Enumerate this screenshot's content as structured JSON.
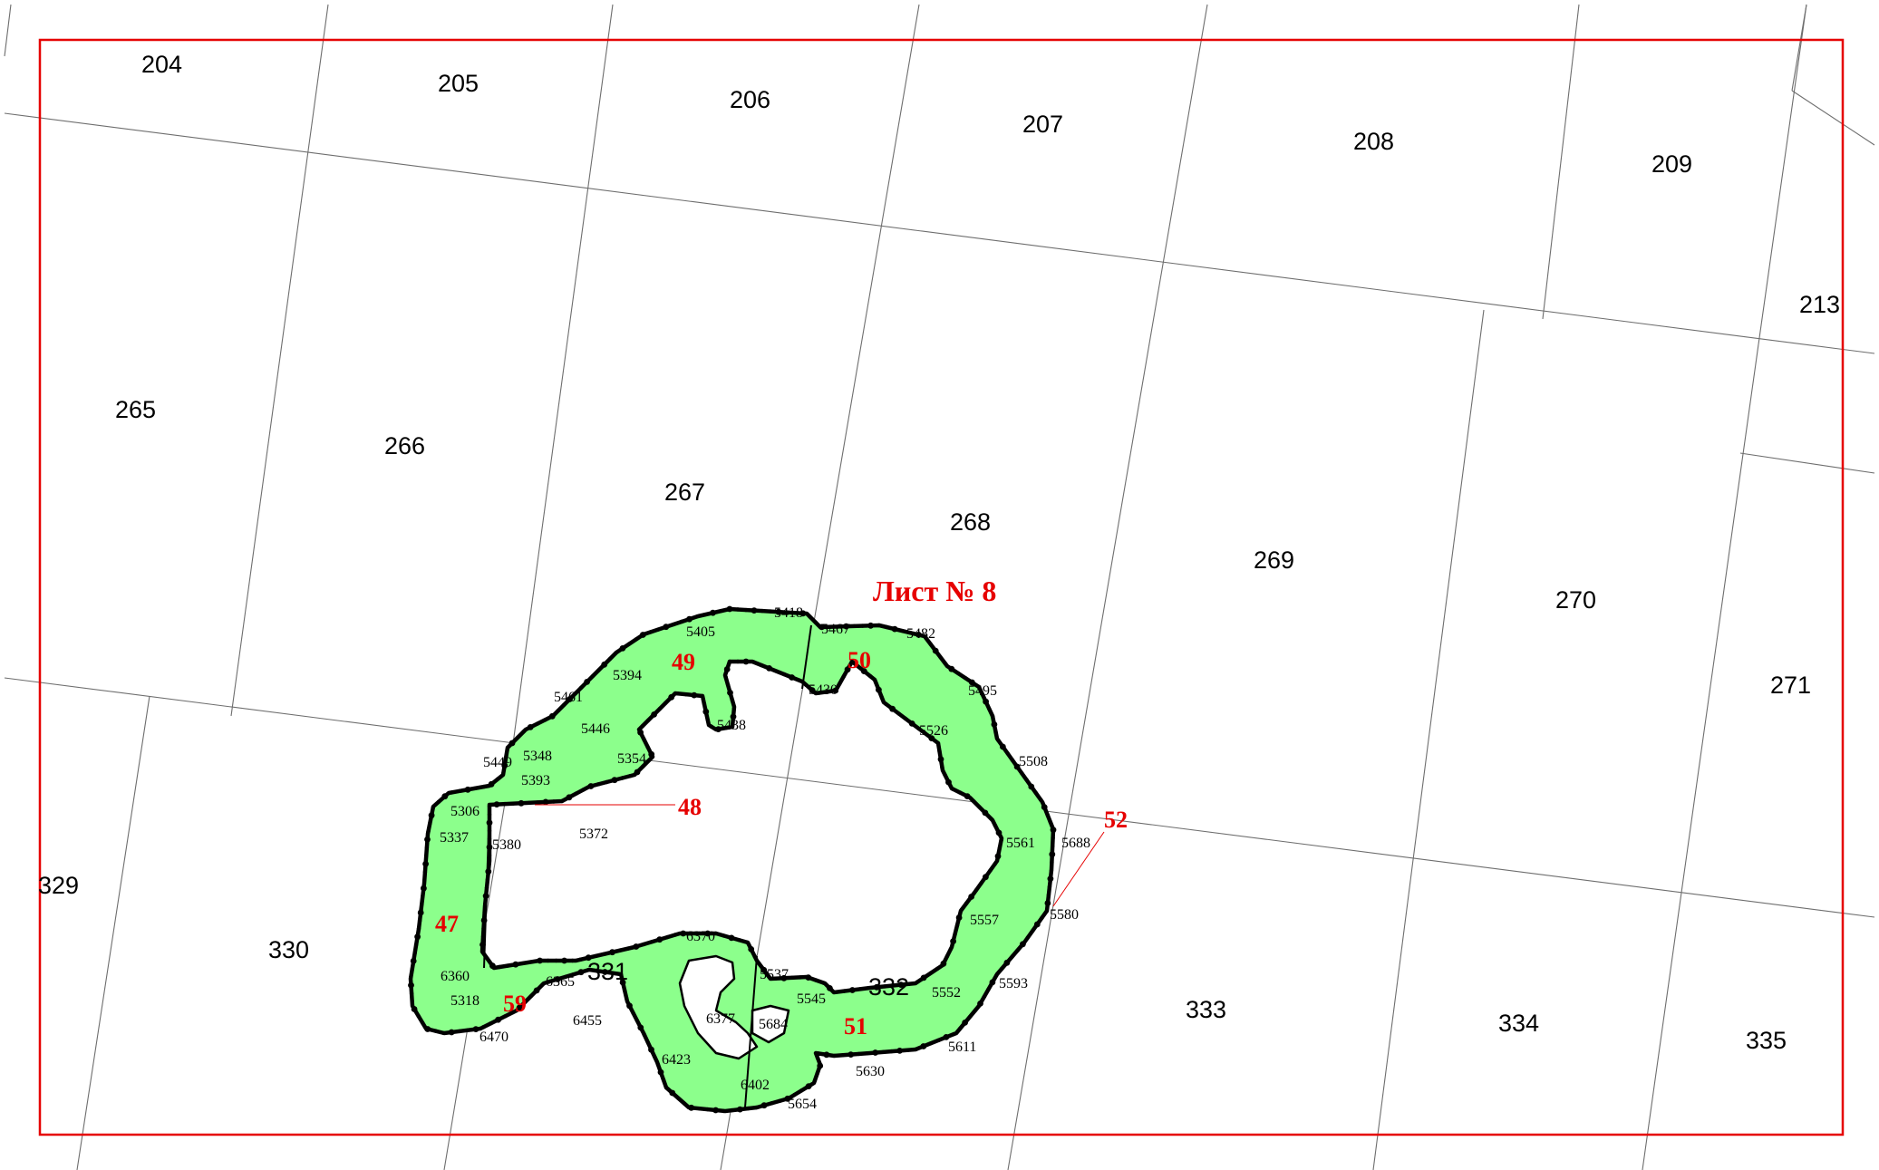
{
  "map": {
    "sheet_title": "Лист № 8",
    "colors": {
      "frame": "#e60000",
      "zone_fill": "#8cff8c",
      "grid": "#6e6e6e",
      "labels": "#000000",
      "annotation": "#e60000"
    },
    "quarters": [
      "204",
      "205",
      "206",
      "207",
      "208",
      "209",
      "213",
      "265",
      "266",
      "267",
      "268",
      "269",
      "270",
      "271",
      "329",
      "330",
      "331",
      "332",
      "333",
      "334",
      "335"
    ],
    "plots": [
      "47",
      "48",
      "49",
      "50",
      "51",
      "52",
      "59"
    ],
    "points": [
      "5405",
      "5418",
      "5467",
      "5482",
      "5394",
      "5461",
      "5430",
      "5438",
      "5495",
      "5446",
      "5526",
      "5449",
      "5348",
      "5354",
      "5508",
      "5393",
      "5306",
      "5337",
      "5380",
      "5372",
      "5561",
      "5688",
      "5557",
      "5580",
      "6370",
      "5537",
      "6360",
      "6365",
      "5318",
      "5545",
      "5552",
      "5593",
      "6455",
      "6377",
      "5684",
      "6470",
      "5611",
      "6423",
      "5630",
      "6402",
      "5654"
    ]
  }
}
